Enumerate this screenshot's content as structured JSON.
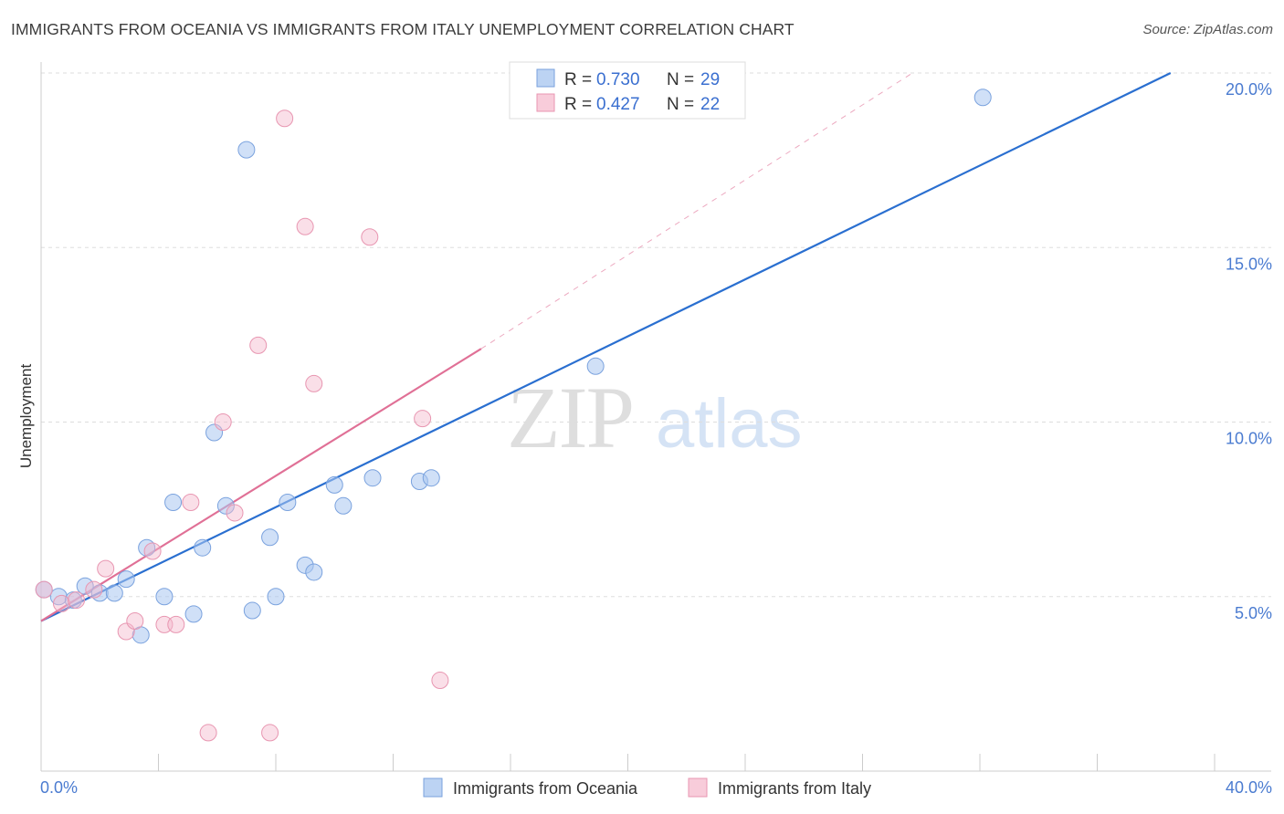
{
  "header": {
    "title": "IMMIGRANTS FROM OCEANIA VS IMMIGRANTS FROM ITALY UNEMPLOYMENT CORRELATION CHART",
    "source": "Source: ZipAtlas.com"
  },
  "watermark": {
    "part1": "ZIP",
    "part2": "atlas"
  },
  "chart_data": {
    "type": "scatter",
    "title": "IMMIGRANTS FROM OCEANIA VS IMMIGRANTS FROM ITALY UNEMPLOYMENT CORRELATION CHART",
    "xlabel": "",
    "ylabel": "Unemployment",
    "xlim": [
      0,
      40
    ],
    "ylim": [
      0,
      20
    ],
    "x_tick_labels": [
      "0.0%",
      "40.0%"
    ],
    "y_ticks": [
      5,
      10,
      15,
      20
    ],
    "y_tick_labels": [
      "5.0%",
      "10.0%",
      "15.0%",
      "20.0%"
    ],
    "grid": true,
    "legend_position": "top-center",
    "series": [
      {
        "name": "Immigrants from Oceania",
        "color": "#a9c7f0",
        "line_color": "#2a6fd0",
        "R": "0.730",
        "N": "29",
        "points": [
          [
            0.1,
            5.2
          ],
          [
            0.6,
            5.0
          ],
          [
            1.1,
            4.9
          ],
          [
            1.5,
            5.3
          ],
          [
            2.0,
            5.1
          ],
          [
            2.5,
            5.1
          ],
          [
            2.9,
            5.5
          ],
          [
            3.4,
            3.9
          ],
          [
            3.6,
            6.4
          ],
          [
            4.2,
            5.0
          ],
          [
            4.5,
            7.7
          ],
          [
            5.2,
            4.5
          ],
          [
            5.5,
            6.4
          ],
          [
            5.9,
            9.7
          ],
          [
            6.3,
            7.6
          ],
          [
            7.0,
            17.8
          ],
          [
            7.2,
            4.6
          ],
          [
            7.8,
            6.7
          ],
          [
            8.0,
            5.0
          ],
          [
            8.4,
            7.7
          ],
          [
            9.0,
            5.9
          ],
          [
            9.3,
            5.7
          ],
          [
            10.0,
            8.2
          ],
          [
            10.3,
            7.6
          ],
          [
            11.3,
            8.4
          ],
          [
            12.9,
            8.3
          ],
          [
            13.3,
            8.4
          ],
          [
            18.9,
            11.6
          ],
          [
            32.1,
            19.3
          ]
        ],
        "trend": [
          [
            0,
            4.3
          ],
          [
            38.5,
            20.0
          ]
        ]
      },
      {
        "name": "Immigrants from Italy",
        "color": "#f5b9cc",
        "line_color": "#e07096",
        "R": "0.427",
        "N": "22",
        "points": [
          [
            0.1,
            5.2
          ],
          [
            0.7,
            4.8
          ],
          [
            1.2,
            4.9
          ],
          [
            1.8,
            5.2
          ],
          [
            2.2,
            5.8
          ],
          [
            2.9,
            4.0
          ],
          [
            3.2,
            4.3
          ],
          [
            3.8,
            6.3
          ],
          [
            4.2,
            4.2
          ],
          [
            4.6,
            4.2
          ],
          [
            5.1,
            7.7
          ],
          [
            5.7,
            1.1
          ],
          [
            6.2,
            10.0
          ],
          [
            6.6,
            7.4
          ],
          [
            7.4,
            12.2
          ],
          [
            7.8,
            1.1
          ],
          [
            8.3,
            18.7
          ],
          [
            9.0,
            15.6
          ],
          [
            9.3,
            11.1
          ],
          [
            11.2,
            15.3
          ],
          [
            13.0,
            10.1
          ],
          [
            13.6,
            2.6
          ]
        ],
        "trend": [
          [
            0,
            4.3
          ],
          [
            15.0,
            12.1
          ]
        ],
        "trend_extension": [
          [
            15.0,
            12.1
          ],
          [
            29.7,
            20.0
          ]
        ]
      }
    ]
  },
  "legend": {
    "r_label": "R =",
    "n_label": "N ="
  }
}
